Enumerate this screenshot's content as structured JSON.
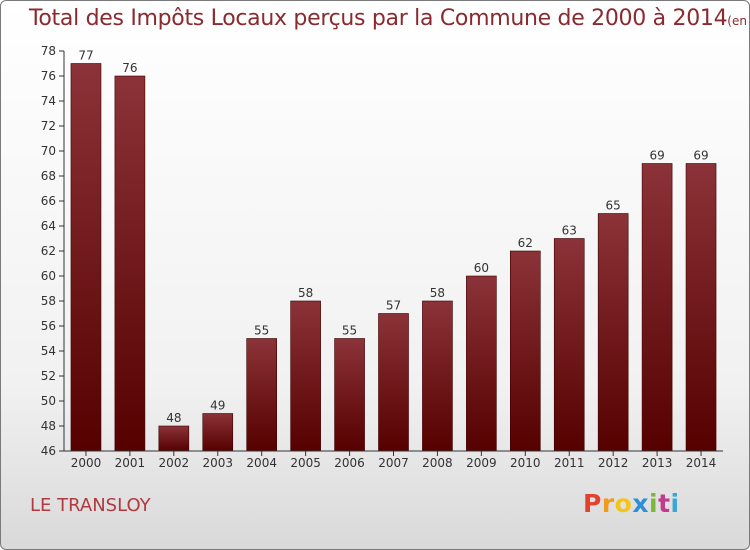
{
  "header": {
    "title": "Total des Impôts Locaux perçus par la Commune de 2000 à 2014",
    "unit": "(en milliers d'€)"
  },
  "footer": {
    "commune": "LE TRANSLOY",
    "logo": [
      "P",
      "r",
      "o",
      "x",
      "i",
      "t",
      "i"
    ],
    "logo_colors": [
      "#e2422a",
      "#f29a1e",
      "#f5c419",
      "#2d8fd5",
      "#7ab83b",
      "#c13a8b",
      "#3aa7d8"
    ]
  },
  "colors": {
    "bar_top": "#8b3338",
    "bar_bottom": "#560000",
    "axis": "#333333",
    "grid": "#e0e0e0",
    "label": "#333333"
  },
  "chart_data": {
    "type": "bar",
    "categories": [
      "2000",
      "2001",
      "2002",
      "2003",
      "2004",
      "2005",
      "2006",
      "2007",
      "2008",
      "2009",
      "2010",
      "2011",
      "2012",
      "2013",
      "2014"
    ],
    "values": [
      77,
      76,
      48,
      49,
      55,
      58,
      55,
      57,
      58,
      60,
      62,
      63,
      65,
      69,
      69
    ],
    "ylim": [
      46,
      78
    ],
    "ytick_step": 2,
    "title": "Total des Impôts Locaux perçus par la Commune de 2000 à 2014",
    "xlabel": "",
    "ylabel": "",
    "grid": false
  }
}
